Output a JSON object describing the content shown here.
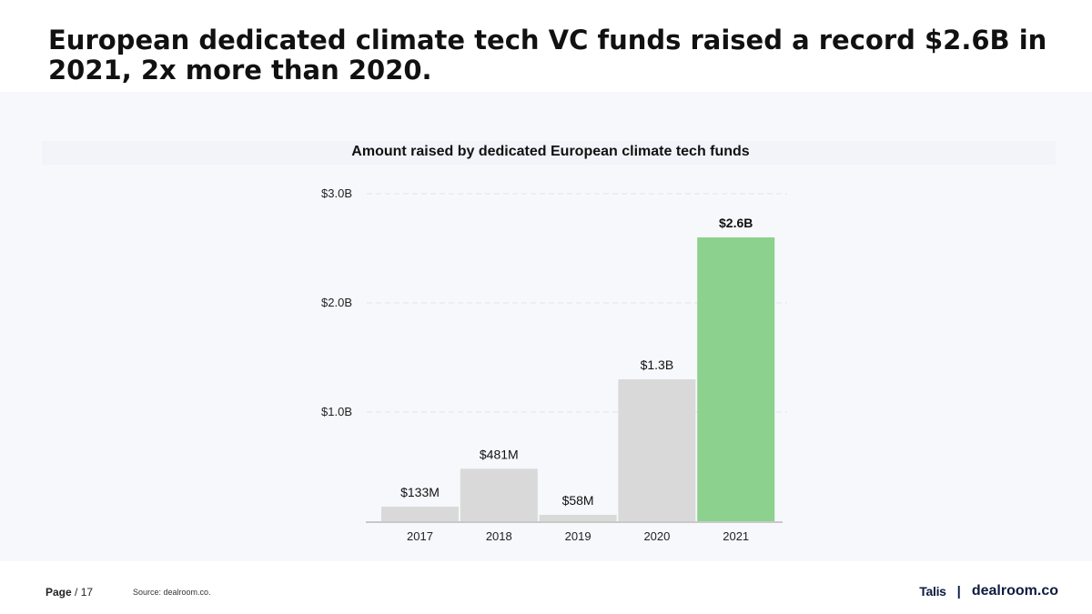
{
  "headline": "European dedicated climate tech VC funds raised a record $2.6B in 2021, 2x more than 2020.",
  "footer": {
    "page_label": "Page",
    "page_number": "/ 17",
    "source": "Source: dealroom.co.",
    "brand_left": "Talis",
    "brand_separator": "|",
    "brand_right": "dealroom.co"
  },
  "colors": {
    "bar_default": "#d9d9d9",
    "bar_highlight": "#8dd18f",
    "gridline": "#e3e4ea",
    "baseline": "#c8c8c8"
  },
  "chart_data": {
    "type": "bar",
    "title": "Amount raised by dedicated European climate tech funds",
    "categories": [
      "2017",
      "2018",
      "2019",
      "2020",
      "2021"
    ],
    "values": [
      0.133,
      0.481,
      0.058,
      1.3,
      2.6
    ],
    "value_unit": "USD billions",
    "data_labels": [
      "$133M",
      "$481M",
      "$58M",
      "$1.3B",
      "$2.6B"
    ],
    "highlight_index": 4,
    "ylim": [
      0,
      3.0
    ],
    "yticks": [
      1.0,
      2.0,
      3.0
    ],
    "ytick_labels": [
      "$1.0B",
      "$2.0B",
      "$3.0B"
    ],
    "grid": true,
    "legend": "none"
  }
}
